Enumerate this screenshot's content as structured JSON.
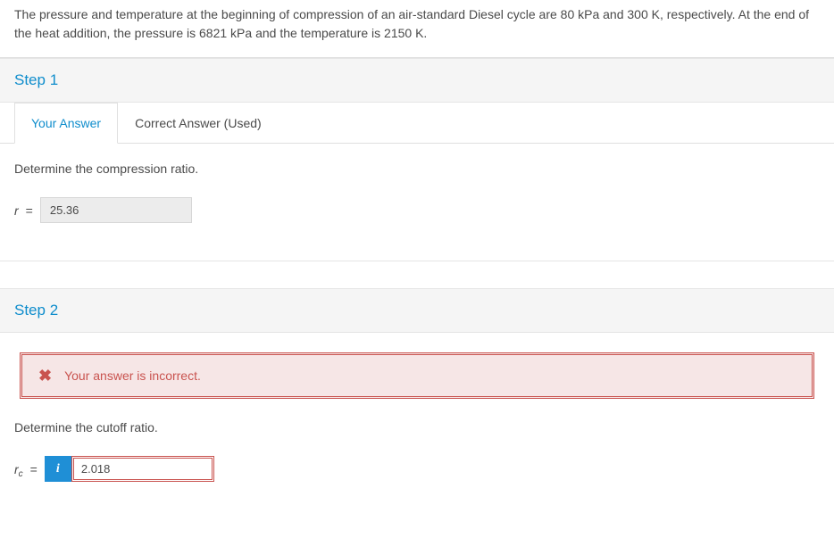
{
  "problem": {
    "text": "The pressure and temperature at the beginning of compression of an air-standard Diesel cycle are 80 kPa and 300 K, respectively. At the end of the heat addition, the pressure is 6821 kPa and the temperature is 2150 K."
  },
  "steps": {
    "step1": {
      "title": "Step 1",
      "tabs": {
        "your_answer": "Your Answer",
        "correct_answer": "Correct Answer (Used)"
      },
      "prompt": "Determine the compression ratio.",
      "variable": "r",
      "equals": "=",
      "value": "25.36"
    },
    "step2": {
      "title": "Step 2",
      "error_message": "Your answer is incorrect.",
      "prompt": "Determine the cutoff ratio.",
      "variable_main": "r",
      "variable_sub": "c",
      "equals": "=",
      "info_icon_label": "i",
      "value": "2.018"
    }
  }
}
